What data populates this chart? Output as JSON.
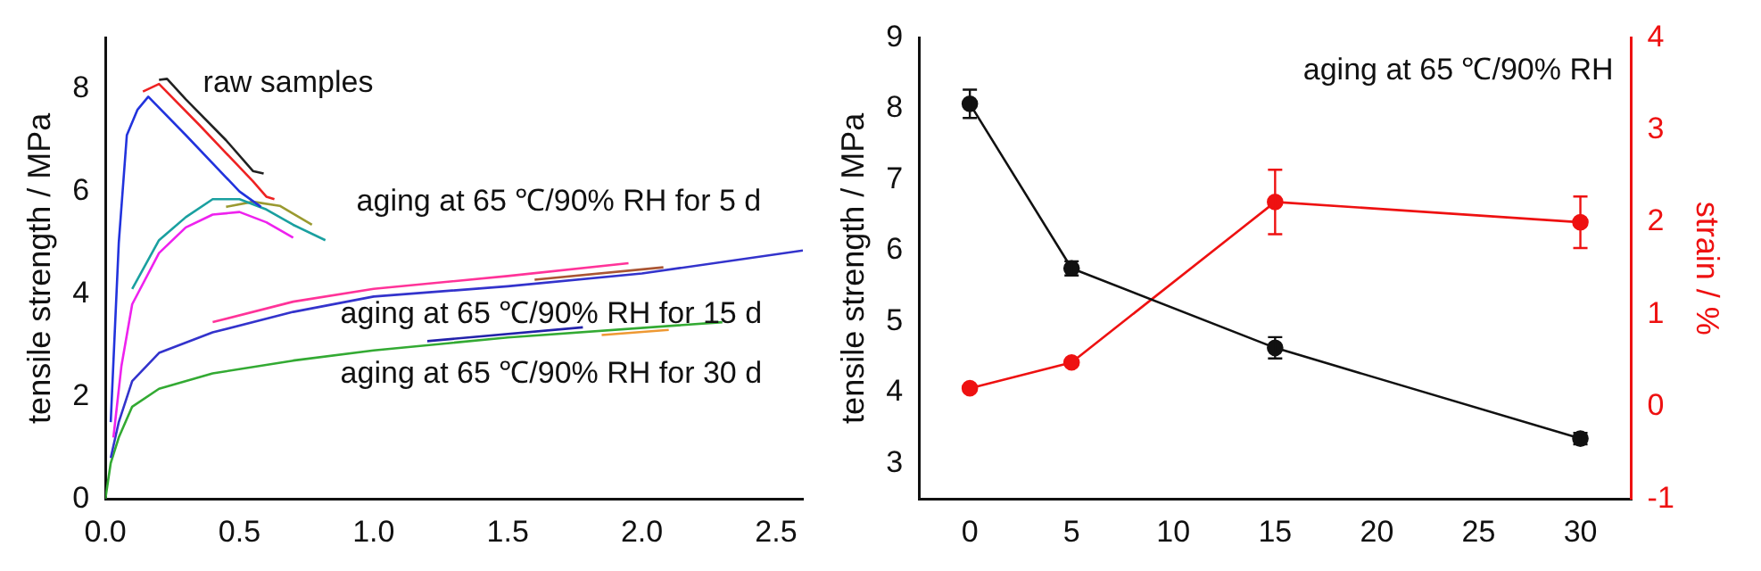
{
  "chart_data": [
    {
      "type": "line",
      "ylabel": "tensile strength / MPa",
      "xlim": [
        0,
        2.6
      ],
      "ylim": [
        0,
        9
      ],
      "xticks": [
        {
          "value": 0,
          "label": "0.0"
        },
        0.5,
        {
          "value": 1,
          "label": "1.0"
        },
        1.5,
        {
          "value": 2,
          "label": "2.0"
        },
        2.5
      ],
      "yticks": [
        0,
        2,
        4,
        6,
        8
      ],
      "grid": false,
      "legend": false,
      "marker": "none",
      "annotations": [
        "raw samples",
        "aging at 65 ℃/90% RH for 5 d",
        "aging at 65 ℃/90% RH for 15 d",
        "aging at 65 ℃/90% RH for 30 d"
      ],
      "series": [
        {
          "color": "#222222",
          "x": [
            0.2,
            0.23,
            0.3,
            0.45,
            0.55,
            0.59
          ],
          "values": [
            8.18,
            8.2,
            7.8,
            7.0,
            6.4,
            6.35
          ]
        },
        {
          "color": "#ee2222",
          "x": [
            0.14,
            0.2,
            0.35,
            0.55,
            0.6,
            0.63
          ],
          "values": [
            7.95,
            8.1,
            7.3,
            6.2,
            5.9,
            5.85
          ]
        },
        {
          "color": "#2233dd",
          "x": [
            0.02,
            0.05,
            0.08,
            0.12,
            0.16,
            0.3,
            0.5,
            0.58
          ],
          "values": [
            1.5,
            5,
            7.1,
            7.6,
            7.85,
            7.1,
            6.0,
            5.7
          ]
        },
        {
          "color": "#1aa0a0",
          "x": [
            0.1,
            0.2,
            0.3,
            0.4,
            0.5,
            0.6,
            0.7,
            0.82
          ],
          "values": [
            4.1,
            5.05,
            5.5,
            5.85,
            5.85,
            5.65,
            5.35,
            5.05
          ]
        },
        {
          "color": "#9a9a30",
          "x": [
            0.45,
            0.55,
            0.65,
            0.77
          ],
          "values": [
            5.7,
            5.8,
            5.72,
            5.35
          ]
        },
        {
          "color": "#ee22ee",
          "x": [
            0.03,
            0.06,
            0.1,
            0.2,
            0.3,
            0.4,
            0.5,
            0.6,
            0.7
          ],
          "values": [
            1.2,
            2.6,
            3.8,
            4.8,
            5.3,
            5.55,
            5.6,
            5.4,
            5.1
          ]
        },
        {
          "color": "#ff3399",
          "x": [
            0.4,
            0.7,
            1.0,
            1.5,
            1.95
          ],
          "values": [
            3.45,
            3.85,
            4.1,
            4.35,
            4.6
          ]
        },
        {
          "color": "#aa5533",
          "x": [
            1.6,
            2.08
          ],
          "values": [
            4.28,
            4.52
          ]
        },
        {
          "color": "#3333cc",
          "x": [
            0.02,
            0.05,
            0.1,
            0.2,
            0.4,
            0.7,
            1.0,
            1.5,
            2.0,
            2.6
          ],
          "values": [
            0.8,
            1.5,
            2.3,
            2.85,
            3.25,
            3.65,
            3.95,
            4.15,
            4.4,
            4.85
          ]
        },
        {
          "color": "#2222aa",
          "x": [
            1.2,
            1.78
          ],
          "values": [
            3.08,
            3.35
          ]
        },
        {
          "color": "#ee9933",
          "x": [
            1.85,
            2.1
          ],
          "values": [
            3.2,
            3.3
          ]
        },
        {
          "color": "#33aa33",
          "x": [
            0,
            0.02,
            0.05,
            0.1,
            0.2,
            0.4,
            0.7,
            1.0,
            1.5,
            2.3
          ],
          "values": [
            0,
            0.7,
            1.2,
            1.8,
            2.15,
            2.45,
            2.7,
            2.9,
            3.15,
            3.45
          ]
        }
      ]
    },
    {
      "type": "line",
      "ylabel": "tensile strength / MPa",
      "y2label": "strain / %",
      "x": [
        0,
        5,
        15,
        30
      ],
      "xlim": [
        -2.5,
        32.5
      ],
      "ylim": [
        2.5,
        9
      ],
      "y2lim": [
        -1,
        4
      ],
      "xticks": [
        0,
        5,
        10,
        15,
        20,
        25,
        30
      ],
      "yticks": [
        3,
        4,
        5,
        6,
        7,
        8,
        9
      ],
      "y2ticks": [
        -1,
        0,
        1,
        2,
        3,
        4
      ],
      "grid": false,
      "legend": false,
      "marker": "circle",
      "annotations": [
        "aging at 65 ℃/90% RH"
      ],
      "series": [
        {
          "color": "#111111",
          "values": [
            8.07,
            5.75,
            4.63,
            3.35
          ],
          "errors": [
            0.2,
            0.1,
            0.15,
            0.08
          ]
        },
        {
          "color": "#ee1111",
          "axis": "y2",
          "values": [
            0.2,
            0.48,
            2.22,
            2.0
          ],
          "errors": [
            null,
            null,
            0.35,
            0.28
          ]
        }
      ]
    }
  ]
}
